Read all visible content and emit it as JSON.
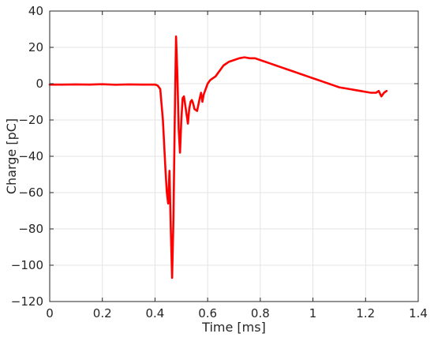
{
  "chart_data": {
    "type": "line",
    "title": "",
    "xlabel": "Time [ms]",
    "ylabel": "Charge [pC]",
    "xlim": [
      0,
      1.4
    ],
    "ylim": [
      -120,
      40
    ],
    "xticks": [
      0,
      0.2,
      0.4,
      0.6,
      0.8,
      1,
      1.2,
      1.4
    ],
    "xtick_labels": [
      "0",
      "0.2",
      "0.4",
      "0.6",
      "0.8",
      "1",
      "1.2",
      "1.4"
    ],
    "yticks": [
      -120,
      -100,
      -80,
      -60,
      -40,
      -20,
      0,
      20,
      40
    ],
    "ytick_labels": [
      "−120",
      "−100",
      "−80",
      "−60",
      "−40",
      "−20",
      "0",
      "20",
      "40"
    ],
    "grid": true,
    "legend": "none",
    "series": [
      {
        "color": "#ff0000",
        "x": [
          0.0,
          0.05,
          0.1,
          0.15,
          0.2,
          0.25,
          0.3,
          0.35,
          0.4,
          0.41,
          0.42,
          0.43,
          0.44,
          0.445,
          0.45,
          0.455,
          0.46,
          0.465,
          0.47,
          0.475,
          0.48,
          0.485,
          0.49,
          0.495,
          0.5,
          0.505,
          0.51,
          0.515,
          0.52,
          0.525,
          0.53,
          0.535,
          0.54,
          0.545,
          0.55,
          0.56,
          0.57,
          0.575,
          0.58,
          0.585,
          0.59,
          0.6,
          0.61,
          0.62,
          0.63,
          0.64,
          0.65,
          0.66,
          0.68,
          0.7,
          0.72,
          0.74,
          0.76,
          0.78,
          0.8,
          0.82,
          0.84,
          0.86,
          0.88,
          0.9,
          0.92,
          0.94,
          0.96,
          0.98,
          1.0,
          1.02,
          1.04,
          1.06,
          1.08,
          1.1,
          1.12,
          1.14,
          1.16,
          1.18,
          1.2,
          1.22,
          1.24,
          1.25,
          1.26,
          1.27,
          1.28
        ],
        "y": [
          -0.5,
          -0.5,
          -0.4,
          -0.5,
          -0.3,
          -0.6,
          -0.4,
          -0.5,
          -0.5,
          -1.0,
          -3.0,
          -20.0,
          -48.0,
          -60.0,
          -66.0,
          -48.0,
          -80.0,
          -107.0,
          -75.0,
          -20.0,
          26.0,
          5.0,
          -25.0,
          -38.0,
          -20.0,
          -8.0,
          -7.0,
          -12.0,
          -17.0,
          -22.0,
          -14.0,
          -10.0,
          -9.0,
          -11.0,
          -14.0,
          -15.0,
          -8.0,
          -5.0,
          -10.0,
          -6.0,
          -4.0,
          0.0,
          2.0,
          3.0,
          4.0,
          6.0,
          8.0,
          10.0,
          12.0,
          13.0,
          14.0,
          14.5,
          14.0,
          14.0,
          13.0,
          12.0,
          11.0,
          10.0,
          9.0,
          8.0,
          7.0,
          6.0,
          5.0,
          4.0,
          3.0,
          2.0,
          1.0,
          0.0,
          -1.0,
          -2.0,
          -2.5,
          -3.0,
          -3.5,
          -4.0,
          -4.5,
          -5.0,
          -5.0,
          -4.0,
          -7.0,
          -5.0,
          -4.0
        ]
      }
    ]
  }
}
